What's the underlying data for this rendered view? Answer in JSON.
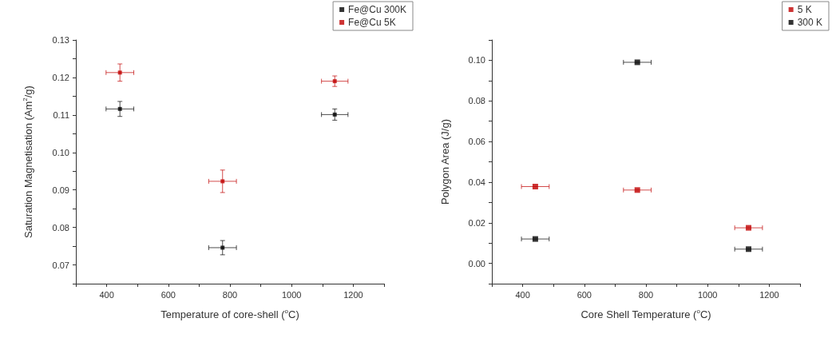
{
  "chart_data": [
    {
      "type": "scatter",
      "xlabel": "Temperature of core-shell ($^{o}$C)",
      "ylabel": "Saturation Magnetisation (Am$^{2}$/g)",
      "xlim": [
        300,
        1300
      ],
      "ylim": [
        0.065,
        0.13
      ],
      "xticks": [
        {
          "value": 300,
          "label": null
        },
        400,
        {
          "value": 500,
          "label": null
        },
        600,
        {
          "value": 700,
          "label": null
        },
        800,
        {
          "value": 900,
          "label": null
        },
        1000,
        {
          "value": 1100,
          "label": null
        },
        1200,
        {
          "value": 1300,
          "label": null
        }
      ],
      "yticks": [
        {
          "value": 0.065,
          "label": null
        },
        {
          "value": 0.07,
          "label": "0.07"
        },
        {
          "value": 0.075,
          "label": null
        },
        {
          "value": 0.08,
          "label": "0.08"
        },
        {
          "value": 0.085,
          "label": null
        },
        {
          "value": 0.09,
          "label": "0.09"
        },
        {
          "value": 0.095,
          "label": null
        },
        {
          "value": 0.1,
          "label": "0.10"
        },
        {
          "value": 0.105,
          "label": null
        },
        {
          "value": 0.11,
          "label": "0.11"
        },
        {
          "value": 0.115,
          "label": null
        },
        {
          "value": 0.12,
          "label": "0.12"
        },
        {
          "value": 0.125,
          "label": null
        },
        {
          "value": 0.13,
          "label": "0.13"
        }
      ],
      "grid": false,
      "legend": "top right",
      "marker": "square",
      "series": [
        {
          "name": "Fe@Cu 300K",
          "color": "#000000",
          "x": [
            443,
            776,
            1140
          ],
          "values": [
            0.1116,
            0.0746,
            0.1101
          ],
          "errors": [
            0.002,
            0.0019,
            0.0015
          ],
          "xerrors": [
            45,
            45,
            43
          ]
        },
        {
          "name": "Fe@Cu 5K",
          "color": "#c00000",
          "x": [
            443,
            776,
            1140
          ],
          "values": [
            0.1213,
            0.0923,
            0.119
          ],
          "errors": [
            0.0023,
            0.003,
            0.0014
          ],
          "xerrors": [
            45,
            45,
            43
          ]
        }
      ]
    },
    {
      "type": "scatter",
      "xlabel": "Core Shell Temperature ($^{o}$C)",
      "ylabel": "Polygon Area (J/g)",
      "xlim": [
        300,
        1300
      ],
      "ylim": [
        -0.01,
        0.11
      ],
      "xticks": [
        {
          "value": 300,
          "label": null
        },
        400,
        {
          "value": 500,
          "label": null
        },
        600,
        {
          "value": 700,
          "label": null
        },
        800,
        {
          "value": 900,
          "label": null
        },
        1000,
        {
          "value": 1100,
          "label": null
        },
        1200,
        {
          "value": 1300,
          "label": null
        }
      ],
      "yticks": [
        {
          "value": -0.01,
          "label": null
        },
        {
          "value": 0,
          "label": "0.00"
        },
        {
          "value": 0.01,
          "label": null
        },
        {
          "value": 0.02,
          "label": "0.02"
        },
        {
          "value": 0.03,
          "label": null
        },
        {
          "value": 0.04,
          "label": "0.04"
        },
        {
          "value": 0.05,
          "label": null
        },
        {
          "value": 0.06,
          "label": "0.06"
        },
        {
          "value": 0.07,
          "label": null
        },
        {
          "value": 0.08,
          "label": "0.08"
        },
        {
          "value": 0.09,
          "label": null
        },
        {
          "value": 0.1,
          "label": "0.10"
        },
        {
          "value": 0.11,
          "label": null
        }
      ],
      "grid": false,
      "legend": "top right",
      "marker": "square",
      "series": [
        {
          "name": "5 K",
          "color": "#c00000",
          "x": [
            441,
            772,
            1133
          ],
          "values": [
            0.0378,
            0.0361,
            0.0175
          ],
          "xerrors": [
            45,
            45,
            45
          ]
        },
        {
          "name": "300 K",
          "color": "#000000",
          "x": [
            441,
            772,
            1133
          ],
          "values": [
            0.012,
            0.099,
            0.007
          ],
          "xerrors": [
            45,
            45,
            45
          ]
        }
      ]
    }
  ]
}
